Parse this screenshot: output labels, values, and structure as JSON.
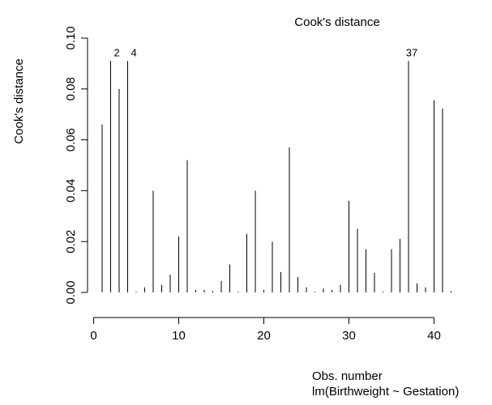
{
  "chart_data": {
    "type": "spike",
    "title": "Cook's distance",
    "x_label": "Obs. number",
    "subtitle": "lm(Birthweight ~ Gestation)",
    "y_label": "Cook's distance",
    "x": [
      1,
      2,
      3,
      4,
      5,
      6,
      7,
      8,
      9,
      10,
      11,
      12,
      13,
      14,
      15,
      16,
      17,
      18,
      19,
      20,
      21,
      22,
      23,
      24,
      25,
      26,
      27,
      28,
      29,
      30,
      31,
      32,
      33,
      34,
      35,
      36,
      37,
      38,
      39,
      40,
      41,
      42
    ],
    "values": [
      0.066,
      0.091,
      0.08,
      0.091,
      0.0003,
      0.002,
      0.04,
      0.003,
      0.007,
      0.022,
      0.052,
      0.001,
      0.001,
      0.0005,
      0.0045,
      0.011,
      0.0003,
      0.023,
      0.04,
      0.001,
      0.02,
      0.008,
      0.057,
      0.006,
      0.002,
      0.0003,
      0.0015,
      0.001,
      0.003,
      0.036,
      0.025,
      0.017,
      0.0077,
      0.0003,
      0.017,
      0.021,
      0.091,
      0.0035,
      0.002,
      0.0755,
      0.0723,
      0.0005
    ],
    "color": "#000000",
    "annotations": [
      {
        "text": "2",
        "x": 2
      },
      {
        "text": "4",
        "x": 4
      },
      {
        "text": "37",
        "x": 37
      }
    ],
    "xlim": [
      0,
      42
    ],
    "xticks": [
      0,
      10,
      20,
      30,
      40
    ],
    "ylim": [
      0,
      0.1
    ],
    "yticks": [
      {
        "value": 0,
        "label": "0.00"
      },
      {
        "value": 0.02,
        "label": "0.02"
      },
      {
        "value": 0.04,
        "label": "0.04"
      },
      {
        "value": 0.06,
        "label": "0.06"
      },
      {
        "value": 0.08,
        "label": "0.08"
      },
      {
        "value": 0.1,
        "label": "0.10"
      }
    ]
  }
}
